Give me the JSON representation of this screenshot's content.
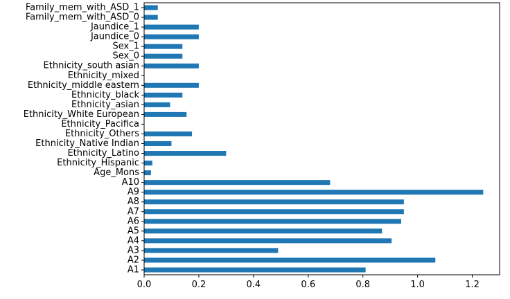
{
  "chart_data": {
    "type": "bar",
    "orientation": "horizontal",
    "categories": [
      "A1",
      "A2",
      "A3",
      "A4",
      "A5",
      "A6",
      "A7",
      "A8",
      "A9",
      "A10",
      "Age_Mons",
      "Ethnicity_Hispanic",
      "Ethnicity_Latino",
      "Ethnicity_Native Indian",
      "Ethnicity_Others",
      "Ethnicity_Pacifica",
      "Ethnicity_White European",
      "Ethnicity_asian",
      "Ethnicity_black",
      "Ethnicity_middle eastern",
      "Ethnicity_mixed",
      "Ethnicity_south asian",
      "Sex_0",
      "Sex_1",
      "Jaundice_0",
      "Jaundice_1",
      "Family_mem_with_ASD_0",
      "Family_mem_with_ASD_1"
    ],
    "values": [
      0.81,
      1.065,
      0.49,
      0.905,
      0.87,
      0.94,
      0.95,
      0.95,
      1.24,
      0.68,
      0.025,
      0.03,
      0.3,
      0.1,
      0.175,
      0.0,
      0.155,
      0.095,
      0.14,
      0.2,
      0.0,
      0.2,
      0.14,
      0.14,
      0.2,
      0.2,
      0.05,
      0.05
    ],
    "xlim": [
      0.0,
      1.3
    ],
    "xticks": [
      "0.0",
      "0.2",
      "0.4",
      "0.6",
      "0.8",
      "1.0",
      "1.2"
    ],
    "xlabel": "",
    "ylabel": "",
    "title": "",
    "bar_color": "#1f77b4",
    "grid": false
  }
}
